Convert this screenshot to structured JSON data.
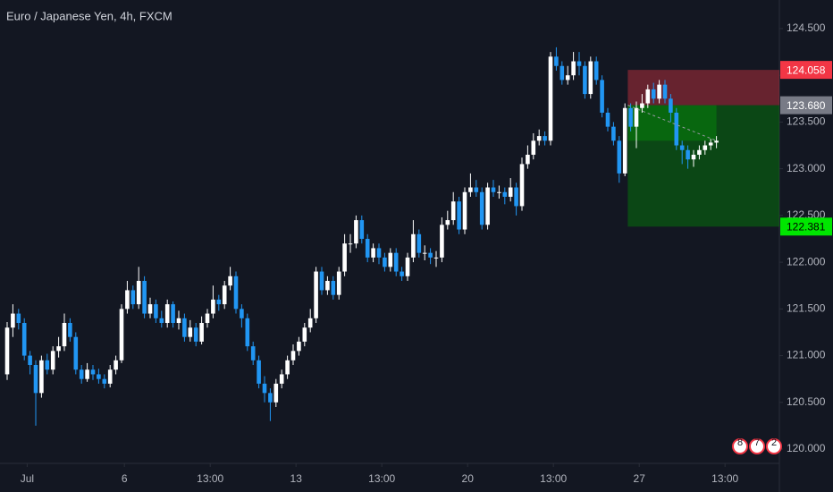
{
  "chart_data": {
    "type": "candlestick",
    "title": "Euro / Japanese Yen, 4h, FXCM",
    "open": [
      120.8,
      121.3,
      121.45,
      121.35,
      121.0,
      120.9,
      120.6,
      120.95,
      120.85,
      121.05,
      121.1,
      121.35,
      121.2,
      120.85,
      120.75,
      120.85,
      120.8,
      120.75,
      120.7,
      120.85,
      120.95,
      121.5,
      121.7,
      121.55,
      121.8,
      121.45,
      121.55,
      121.4,
      121.35,
      121.55,
      121.35,
      121.4,
      121.2,
      121.3,
      121.15,
      121.35,
      121.45,
      121.6,
      121.55,
      121.75,
      121.85,
      121.5,
      121.4,
      121.1,
      120.95,
      120.7,
      120.6,
      120.5,
      120.7,
      120.8,
      120.95,
      121.05,
      121.15,
      121.3,
      121.4,
      121.9,
      121.7,
      121.8,
      121.65,
      121.9,
      122.2,
      122.2,
      122.45,
      122.25,
      122.05,
      122.15,
      122.05,
      121.95,
      122.1,
      121.9,
      121.85,
      122.05,
      122.3,
      122.1,
      122.1,
      122.05,
      122.05,
      122.4,
      122.45,
      122.65,
      122.35,
      122.75,
      122.8,
      122.75,
      122.4,
      122.8,
      122.75,
      122.75,
      122.7,
      122.8,
      122.6,
      123.05,
      123.15,
      123.3,
      123.35,
      123.3,
      124.2,
      124.1,
      123.95,
      124.0,
      124.15,
      124.1,
      123.8,
      124.15,
      123.95,
      123.6,
      123.45,
      123.3,
      122.95,
      123.65,
      123.45,
      123.65,
      123.7,
      123.85,
      123.75,
      123.9,
      123.75,
      123.6,
      123.25,
      123.2,
      123.1,
      123.15,
      123.2,
      123.25,
      123.28
    ],
    "high": [
      121.36,
      121.55,
      121.5,
      121.4,
      121.05,
      120.95,
      121.0,
      121.02,
      121.1,
      121.2,
      121.45,
      121.4,
      121.25,
      120.9,
      120.92,
      120.9,
      120.86,
      120.8,
      120.9,
      121.0,
      121.55,
      121.8,
      121.75,
      121.95,
      121.85,
      121.62,
      121.6,
      121.48,
      121.6,
      121.58,
      121.48,
      121.45,
      121.38,
      121.35,
      121.42,
      121.5,
      121.75,
      121.65,
      121.8,
      121.95,
      121.9,
      121.55,
      121.45,
      121.15,
      121.0,
      120.78,
      120.65,
      120.75,
      120.85,
      121.0,
      121.12,
      121.2,
      121.35,
      121.5,
      121.95,
      121.95,
      121.85,
      121.85,
      121.95,
      122.3,
      122.3,
      122.5,
      122.5,
      122.3,
      122.2,
      122.2,
      122.1,
      122.15,
      122.15,
      121.95,
      122.1,
      122.45,
      122.35,
      122.18,
      122.15,
      122.12,
      122.48,
      122.55,
      122.75,
      122.7,
      122.8,
      122.95,
      122.88,
      122.8,
      122.85,
      122.88,
      122.82,
      122.8,
      122.9,
      122.85,
      123.12,
      123.25,
      123.38,
      123.42,
      123.4,
      124.25,
      124.3,
      124.15,
      124.1,
      124.25,
      124.25,
      124.15,
      124.2,
      124.2,
      124.0,
      123.65,
      123.5,
      123.35,
      123.7,
      123.7,
      123.72,
      123.8,
      123.9,
      123.92,
      123.95,
      123.95,
      123.8,
      123.65,
      123.3,
      123.25,
      123.2,
      123.25,
      123.3,
      123.32,
      123.35
    ],
    "low": [
      120.74,
      121.2,
      121.28,
      120.95,
      120.8,
      120.25,
      120.55,
      120.8,
      120.8,
      120.98,
      121.05,
      121.15,
      120.8,
      120.7,
      120.72,
      120.74,
      120.7,
      120.65,
      120.66,
      120.8,
      120.92,
      121.45,
      121.5,
      121.5,
      121.4,
      121.4,
      121.35,
      121.3,
      121.3,
      121.3,
      121.28,
      121.15,
      121.15,
      121.1,
      121.12,
      121.3,
      121.4,
      121.48,
      121.5,
      121.7,
      121.45,
      121.3,
      121.05,
      120.9,
      120.65,
      120.5,
      120.3,
      120.45,
      120.65,
      120.75,
      120.9,
      121.0,
      121.1,
      121.25,
      121.35,
      121.65,
      121.65,
      121.6,
      121.6,
      121.85,
      122.1,
      122.15,
      122.2,
      122.0,
      122.0,
      121.98,
      121.9,
      121.9,
      121.85,
      121.8,
      121.8,
      122.0,
      122.05,
      122.02,
      121.98,
      121.95,
      122.0,
      122.35,
      122.4,
      122.3,
      122.3,
      122.7,
      122.7,
      122.35,
      122.35,
      122.7,
      122.68,
      122.62,
      122.65,
      122.5,
      122.55,
      123.0,
      123.1,
      123.25,
      123.25,
      123.25,
      124.05,
      123.9,
      123.9,
      123.95,
      124.0,
      123.75,
      123.75,
      123.9,
      123.55,
      123.4,
      123.25,
      122.85,
      122.92,
      123.4,
      123.22,
      123.6,
      123.65,
      123.7,
      123.7,
      123.7,
      123.5,
      123.2,
      123.05,
      123.0,
      123.02,
      123.1,
      123.15,
      123.2,
      123.22
    ],
    "close": [
      121.3,
      121.45,
      121.35,
      121.0,
      120.9,
      120.6,
      120.95,
      120.85,
      121.05,
      121.1,
      121.35,
      121.2,
      120.85,
      120.75,
      120.85,
      120.8,
      120.75,
      120.7,
      120.85,
      120.95,
      121.5,
      121.7,
      121.55,
      121.8,
      121.45,
      121.55,
      121.4,
      121.35,
      121.55,
      121.35,
      121.4,
      121.2,
      121.3,
      121.15,
      121.35,
      121.45,
      121.6,
      121.55,
      121.75,
      121.85,
      121.5,
      121.4,
      121.1,
      120.95,
      120.7,
      120.6,
      120.5,
      120.7,
      120.8,
      120.95,
      121.05,
      121.15,
      121.3,
      121.4,
      121.9,
      121.7,
      121.8,
      121.65,
      121.9,
      122.2,
      122.2,
      122.45,
      122.25,
      122.05,
      122.15,
      122.05,
      121.95,
      122.1,
      121.9,
      121.85,
      122.05,
      122.3,
      122.1,
      122.1,
      122.05,
      122.05,
      122.4,
      122.45,
      122.65,
      122.35,
      122.75,
      122.8,
      122.75,
      122.4,
      122.8,
      122.75,
      122.75,
      122.7,
      122.8,
      122.6,
      123.05,
      123.15,
      123.3,
      123.35,
      123.3,
      124.2,
      124.1,
      123.95,
      124.0,
      124.15,
      124.1,
      123.8,
      124.15,
      123.95,
      123.6,
      123.45,
      123.3,
      122.95,
      123.65,
      123.45,
      123.65,
      123.7,
      123.85,
      123.75,
      123.9,
      123.75,
      123.6,
      123.25,
      123.2,
      123.1,
      123.15,
      123.2,
      123.25,
      123.28,
      123.3
    ],
    "up_color": "#ffffff",
    "down_color": "#2196f3",
    "xlim": [
      -1.25,
      135
    ],
    "ylim": [
      119.847,
      124.806
    ],
    "xticks": [
      {
        "value": 3.5,
        "label": "Jul"
      },
      {
        "value": 20.5,
        "label": "6"
      },
      {
        "value": 35.5,
        "label": "13:00"
      },
      {
        "value": 50.5,
        "label": "13"
      },
      {
        "value": 65.5,
        "label": "13:00"
      },
      {
        "value": 80.5,
        "label": "20"
      },
      {
        "value": 95.5,
        "label": "13:00"
      },
      {
        "value": 110.5,
        "label": "27"
      },
      {
        "value": 125.5,
        "label": "13:00"
      }
    ],
    "yticks": [
      {
        "value": 120,
        "label": "120.000"
      },
      {
        "value": 120.5,
        "label": "120.500"
      },
      {
        "value": 121,
        "label": "121.000"
      },
      {
        "value": 121.5,
        "label": "121.500"
      },
      {
        "value": 122,
        "label": "122.000"
      },
      {
        "value": 122.5,
        "label": "122.500"
      },
      {
        "value": 123,
        "label": "123.000"
      },
      {
        "value": 123.5,
        "label": "123.500"
      },
      {
        "value": 124,
        "label": "124.000"
      },
      {
        "value": 124.5,
        "label": "124.500"
      }
    ],
    "position": {
      "start": 108.5,
      "stop": {
        "value": 124.058,
        "label": "124.058"
      },
      "entry": {
        "value": 123.68,
        "label": "123.680"
      },
      "target": {
        "value": 122.381,
        "label": "122.381"
      }
    },
    "badges": [
      "8",
      "7",
      "2"
    ]
  }
}
